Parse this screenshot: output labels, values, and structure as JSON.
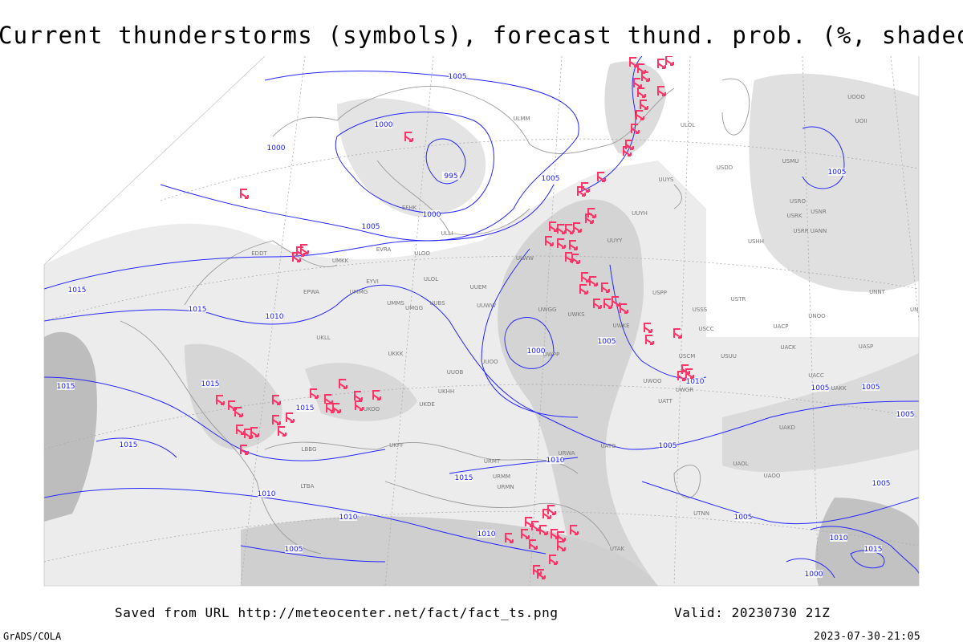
{
  "header": {
    "title": "Current thunderstorms (symbols), forecast thund. prob. (%, shaded)"
  },
  "footer": {
    "source": "Saved from URL http://meteocenter.net/fact/fact_ts.png",
    "valid": "Valid: 20230730 21Z",
    "software": "GrADS/COLA",
    "timestamp": "2023-07-30-21:05"
  },
  "isobar_labels": [
    "1005",
    "1000",
    "1000",
    "995",
    "1000",
    "1005",
    "1005",
    "1015",
    "1015",
    "1010",
    "1015",
    "1015",
    "1015",
    "1015",
    "1000",
    "1005",
    "1010",
    "1005",
    "1005",
    "1005",
    "1005",
    "1010",
    "1015",
    "1010",
    "1010",
    "1010",
    "1005",
    "1005",
    "1005",
    "1005",
    "1010",
    "1015",
    "1000"
  ],
  "station_labels": [
    "ULMM",
    "ULOL",
    "USDD",
    "UUYS",
    "UUYH",
    "UUYY",
    "EFHK",
    "ULLI",
    "EVRA",
    "ULOO",
    "ULWW",
    "UMKK",
    "EDDT",
    "ULOL",
    "EYVI",
    "UUEM",
    "EPWA",
    "UMMG",
    "UMMS",
    "UMGG",
    "UUBS",
    "UUWW",
    "UWGG",
    "UWKS",
    "USSS",
    "UNBB",
    "USCC",
    "UWKE",
    "UKLL",
    "UKKK",
    "UUOB",
    "UUOO",
    "UWPP",
    "USTR",
    "UACP",
    "UACK",
    "UASP",
    "UACC",
    "UAKK",
    "UWOO",
    "UWGR",
    "UATT",
    "UAKD",
    "UATG",
    "UAOL",
    "UAOO",
    "URWA",
    "URMT",
    "URMM",
    "URMN",
    "UTAK",
    "UTNN",
    "LBBG",
    "UKFF",
    "LTBA",
    "UKOO",
    "UKDE",
    "UKHH",
    "UOOO",
    "UOII",
    "USMU",
    "USRO",
    "USRK",
    "USNR",
    "USRR",
    "UANN",
    "USHH",
    "UNNT",
    "UNOO",
    "USUU",
    "USCM",
    "USPP"
  ]
}
